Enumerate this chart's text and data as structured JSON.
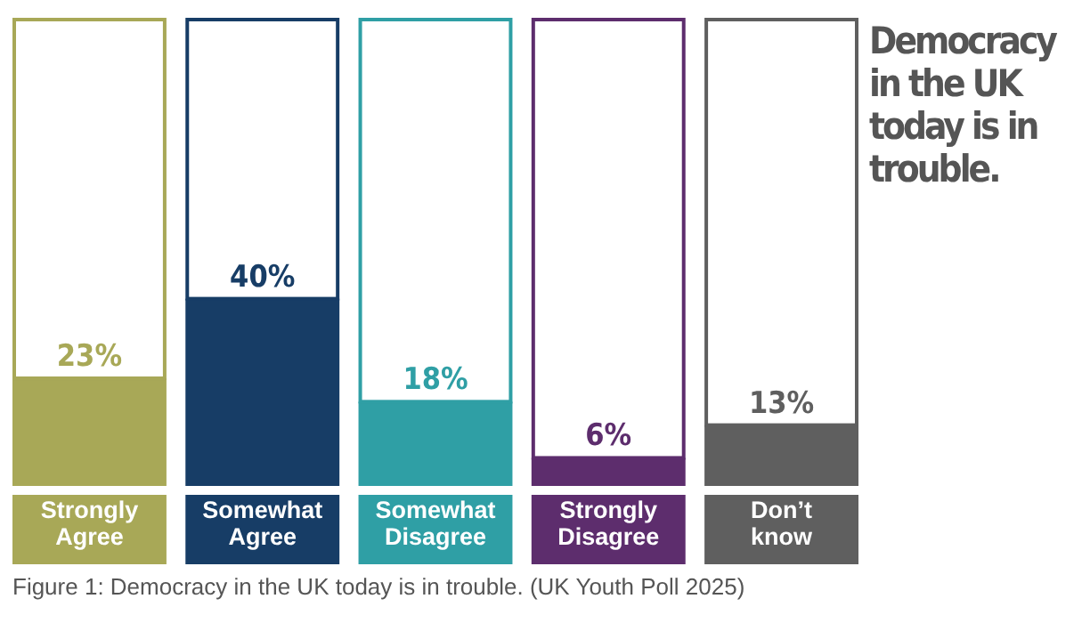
{
  "chart_data": {
    "type": "bar",
    "title": "Democracy in the UK today is in trouble.",
    "categories": [
      "Strongly Agree",
      "Somewhat Agree",
      "Somewhat Disagree",
      "Strongly Disagree",
      "Don’t know"
    ],
    "stacked": true,
    "series": [
      {
        "values": [
          23,
          40,
          18,
          6,
          13
        ],
        "colors": [
          "#a8a857",
          "#173d66",
          "#2f9fa5",
          "#5d2d6d",
          "#5f5f5f"
        ],
        "value_labels": [
          "23%",
          "40%",
          "18%",
          "6%",
          "13%"
        ]
      },
      {
        "values": [
          77,
          60,
          82,
          94,
          87
        ],
        "colors": [
          "#a8a857",
          "#173d66",
          "#2f9fa5",
          "#5d2d6d",
          "#5f5f5f"
        ]
      }
    ],
    "annotations": [
      "Figure 1: Democracy in the UK today is in trouble. (UK Youth Poll 2025)"
    ]
  }
}
